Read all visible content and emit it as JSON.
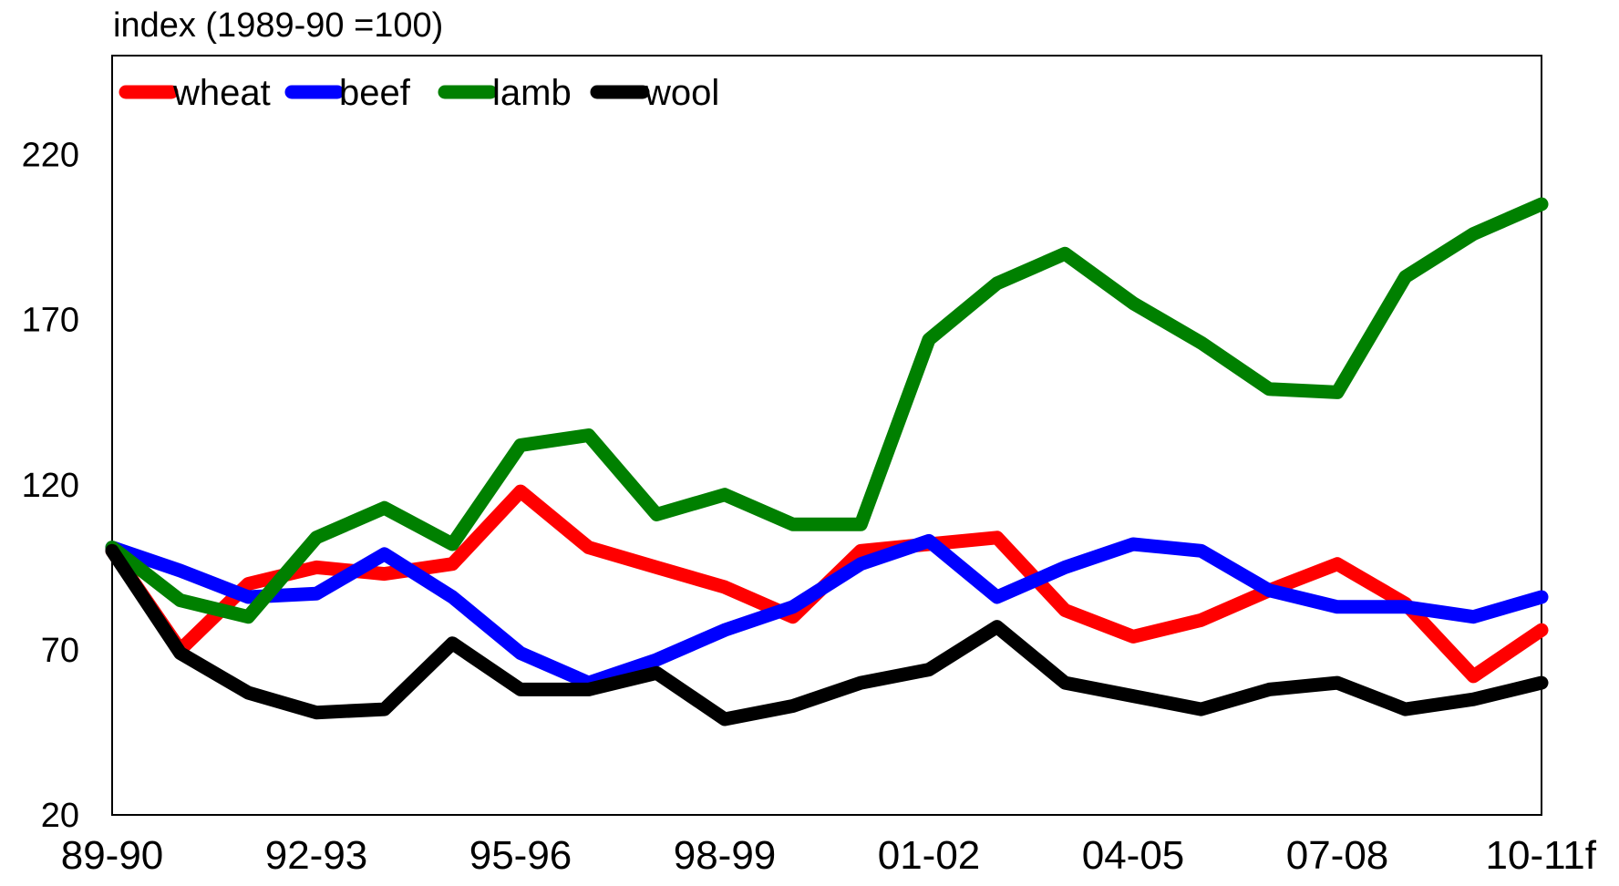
{
  "chart_data": {
    "type": "line",
    "ylabel": "index (1989-90 =100)",
    "ylim": [
      20,
      250
    ],
    "yticks": [
      20,
      70,
      120,
      170,
      220
    ],
    "x": [
      "89-90",
      "90-91",
      "91-92",
      "92-93",
      "93-94",
      "94-95",
      "95-96",
      "96-97",
      "97-98",
      "98-99",
      "99-00",
      "00-01",
      "01-02",
      "02-03",
      "03-04",
      "04-05",
      "05-06",
      "06-07",
      "07-08",
      "08-09",
      "09-10",
      "10-11f"
    ],
    "xtick_labels": [
      "89-90",
      "92-93",
      "95-96",
      "98-99",
      "01-02",
      "04-05",
      "07-08",
      "10-11f"
    ],
    "legend_placement": "top-left",
    "grid": false,
    "series": [
      {
        "name": "wheat",
        "color": "#ff0000",
        "values": [
          100,
          70,
          90,
          95,
          93,
          96,
          118,
          101,
          95,
          89,
          80,
          100,
          102,
          104,
          82,
          74,
          79,
          88,
          96,
          84,
          62,
          76
        ]
      },
      {
        "name": "beef",
        "color": "#0000ff",
        "values": [
          101,
          94,
          86,
          87,
          99,
          86,
          69,
          60,
          67,
          76,
          83,
          96,
          103,
          86,
          95,
          102,
          100,
          88,
          83,
          83,
          80,
          86
        ]
      },
      {
        "name": "lamb",
        "color": "#008000",
        "values": [
          101,
          85,
          80,
          104,
          113,
          102,
          132,
          135,
          111,
          117,
          108,
          108,
          164,
          181,
          190,
          175,
          163,
          149,
          148,
          183,
          196,
          205
        ]
      },
      {
        "name": "wool",
        "color": "#000000",
        "values": [
          100,
          69,
          57,
          51,
          52,
          72,
          58,
          58,
          63,
          49,
          53,
          60,
          64,
          77,
          60,
          56,
          52,
          58,
          60,
          52,
          55,
          60
        ]
      }
    ]
  }
}
